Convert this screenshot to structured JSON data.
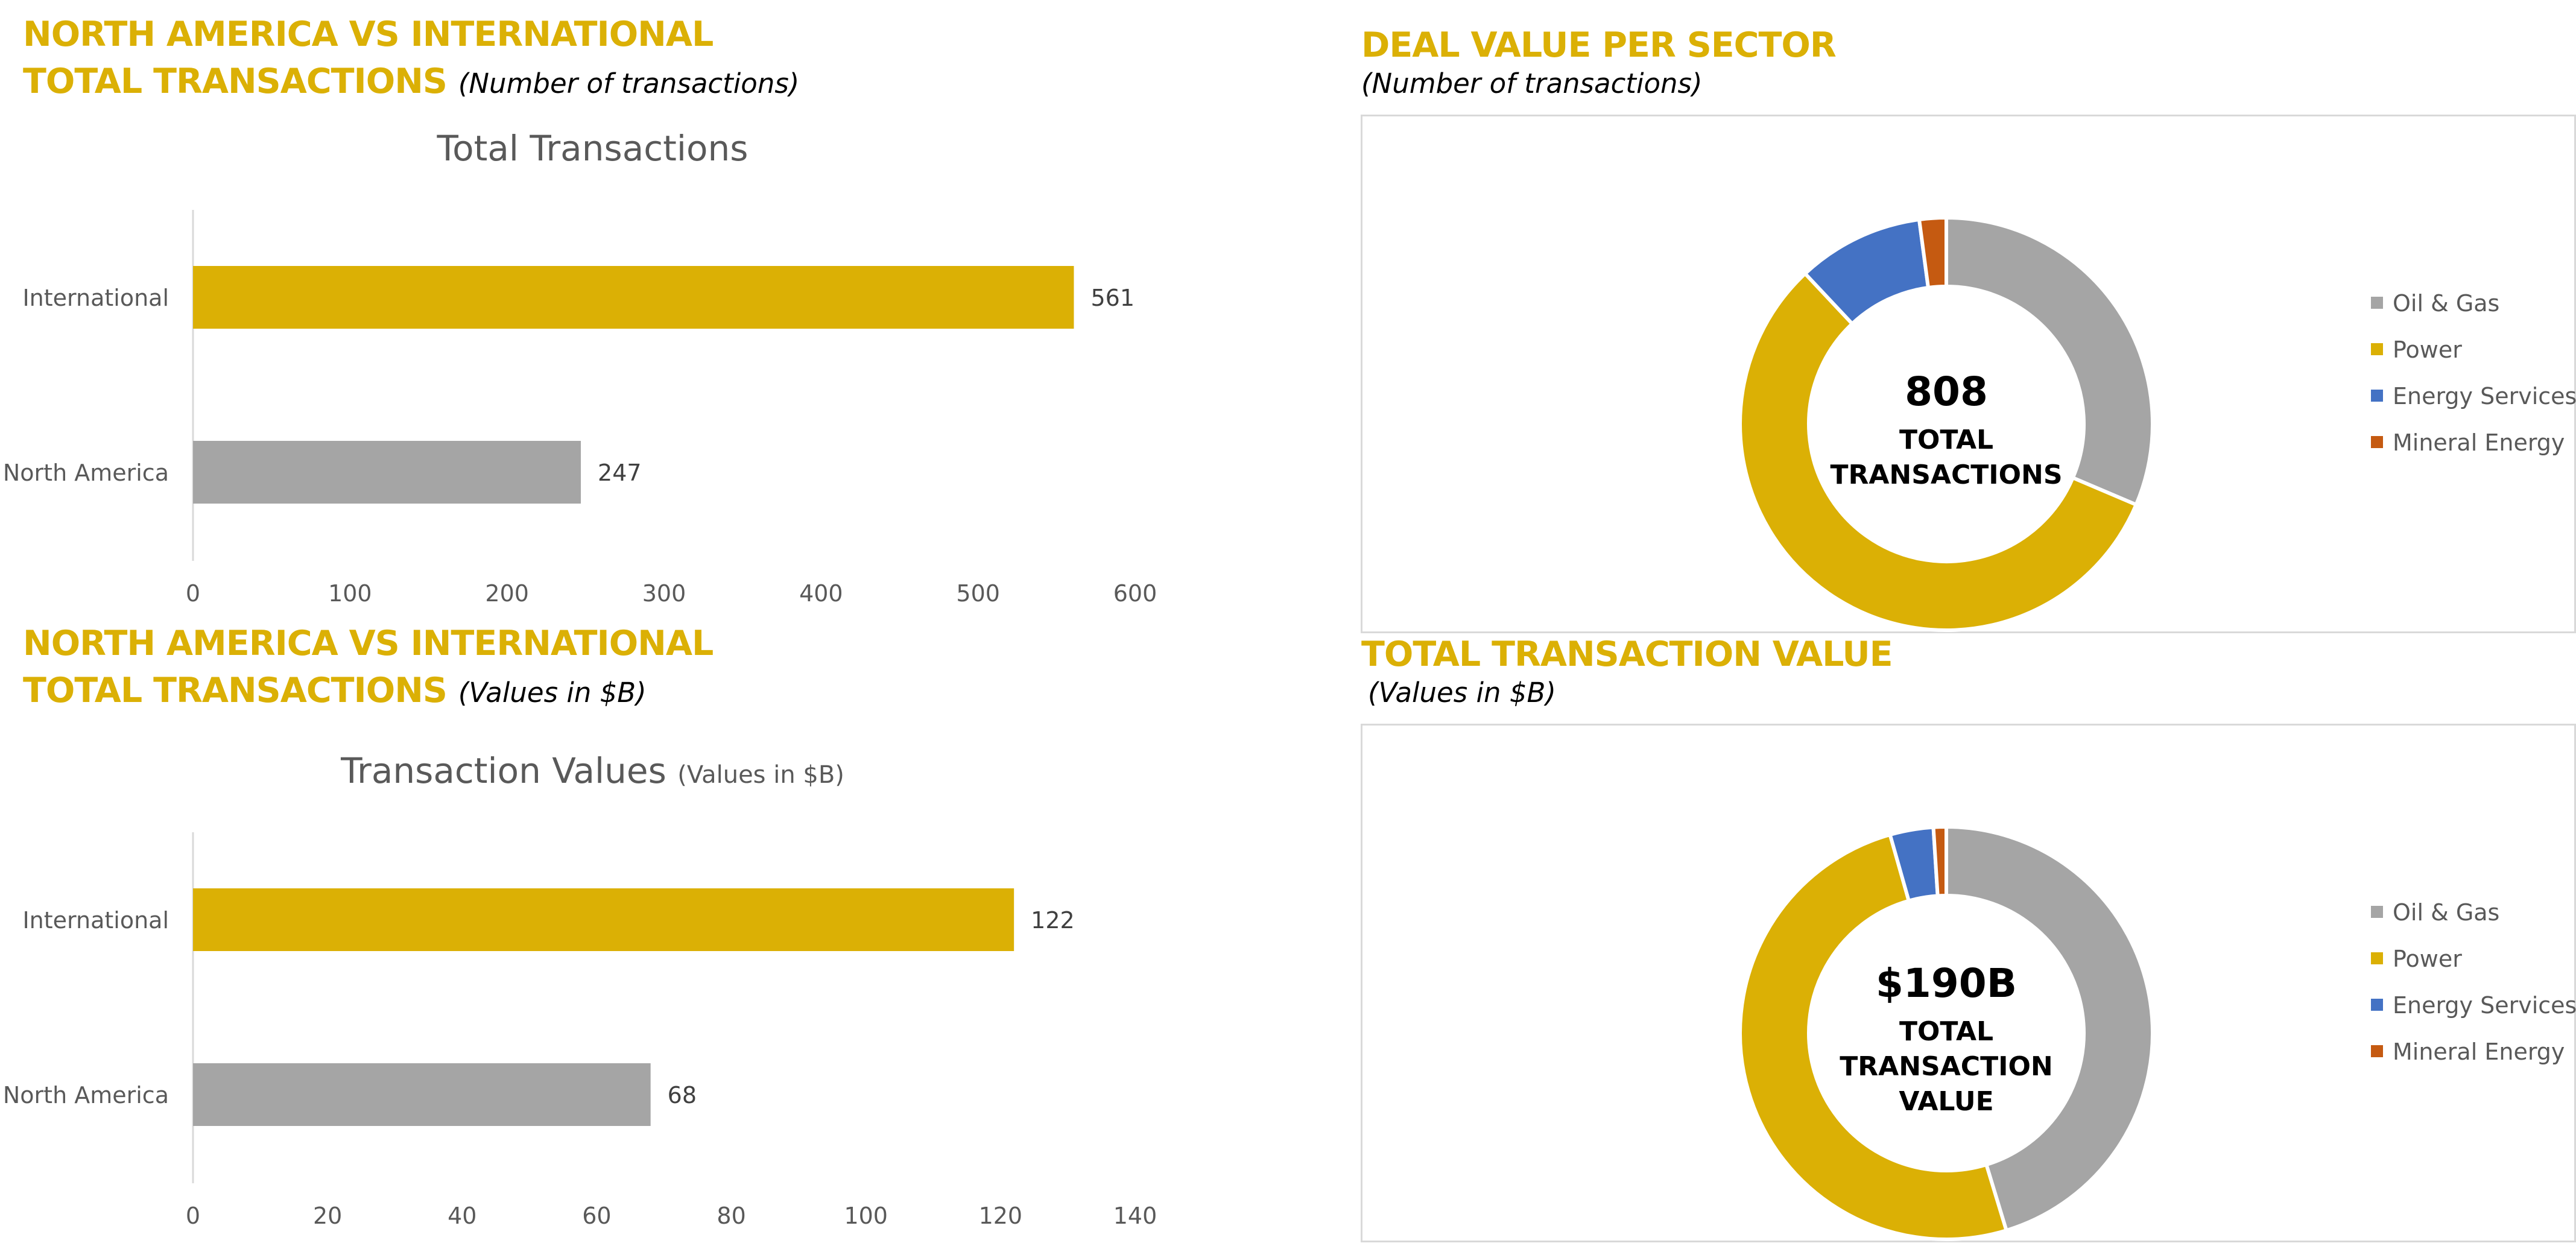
{
  "headings": {
    "top_left": {
      "line1": "NORTH AMERICA VS INTERNATIONAL",
      "line2": "TOTAL TRANSACTIONS",
      "sub": "(Number of transactions)"
    },
    "bottom_left": {
      "line1": "NORTH AMERICA VS INTERNATIONAL",
      "line2": "TOTAL TRANSACTIONS",
      "sub": "(Values in $B)"
    },
    "top_right": {
      "line1": "DEAL VALUE PER SECTOR",
      "sub": "(Number of transactions)"
    },
    "bottom_right": {
      "line1": "TOTAL TRANSACTION VALUE",
      "sub": "(Values in $B)"
    }
  },
  "colors": {
    "accent": "#DBB005",
    "gray": "#A5A5A5",
    "blue": "#4472C4",
    "orange": "#C55A11",
    "text": "#595959"
  },
  "chart_data": [
    {
      "type": "bar",
      "orientation": "horizontal",
      "title": "Total Transactions",
      "title_suffix": "",
      "categories": [
        "International",
        "North America"
      ],
      "values": [
        561,
        247
      ],
      "bar_colors": [
        "#DBB005",
        "#A5A5A5"
      ],
      "xlim": [
        0,
        600
      ],
      "xticks": [
        0,
        100,
        200,
        300,
        400,
        500,
        600
      ],
      "data_labels": true,
      "grid": false
    },
    {
      "type": "bar",
      "orientation": "horizontal",
      "title": "Transaction Values",
      "title_suffix": "(Values in $B)",
      "categories": [
        "International",
        "North America"
      ],
      "values": [
        122,
        68
      ],
      "bar_colors": [
        "#DBB005",
        "#A5A5A5"
      ],
      "xlim": [
        0,
        140
      ],
      "xticks": [
        0,
        20,
        40,
        60,
        80,
        100,
        120,
        140
      ],
      "data_labels": true,
      "grid": false
    },
    {
      "type": "pie",
      "variant": "donut",
      "labels": [
        "Oil & Gas",
        "Power",
        "Energy Services",
        "Mineral Energy"
      ],
      "values": [
        31.4,
        56.6,
        9.9,
        2.1
      ],
      "colors": [
        "#A5A5A5",
        "#DBB005",
        "#4472C4",
        "#C55A11"
      ],
      "center_value": "808",
      "center_lines": [
        "TOTAL",
        "TRANSACTIONS"
      ],
      "legend_position": "right"
    },
    {
      "type": "pie",
      "variant": "donut",
      "labels": [
        "Oil & Gas",
        "Power",
        "Energy Services",
        "Mineral Energy"
      ],
      "values": [
        45.3,
        50.3,
        3.4,
        1.0
      ],
      "colors": [
        "#A5A5A5",
        "#DBB005",
        "#4472C4",
        "#C55A11"
      ],
      "center_value": "$190B",
      "center_lines": [
        "TOTAL",
        "TRANSACTION",
        "VALUE"
      ],
      "legend_position": "right"
    }
  ]
}
